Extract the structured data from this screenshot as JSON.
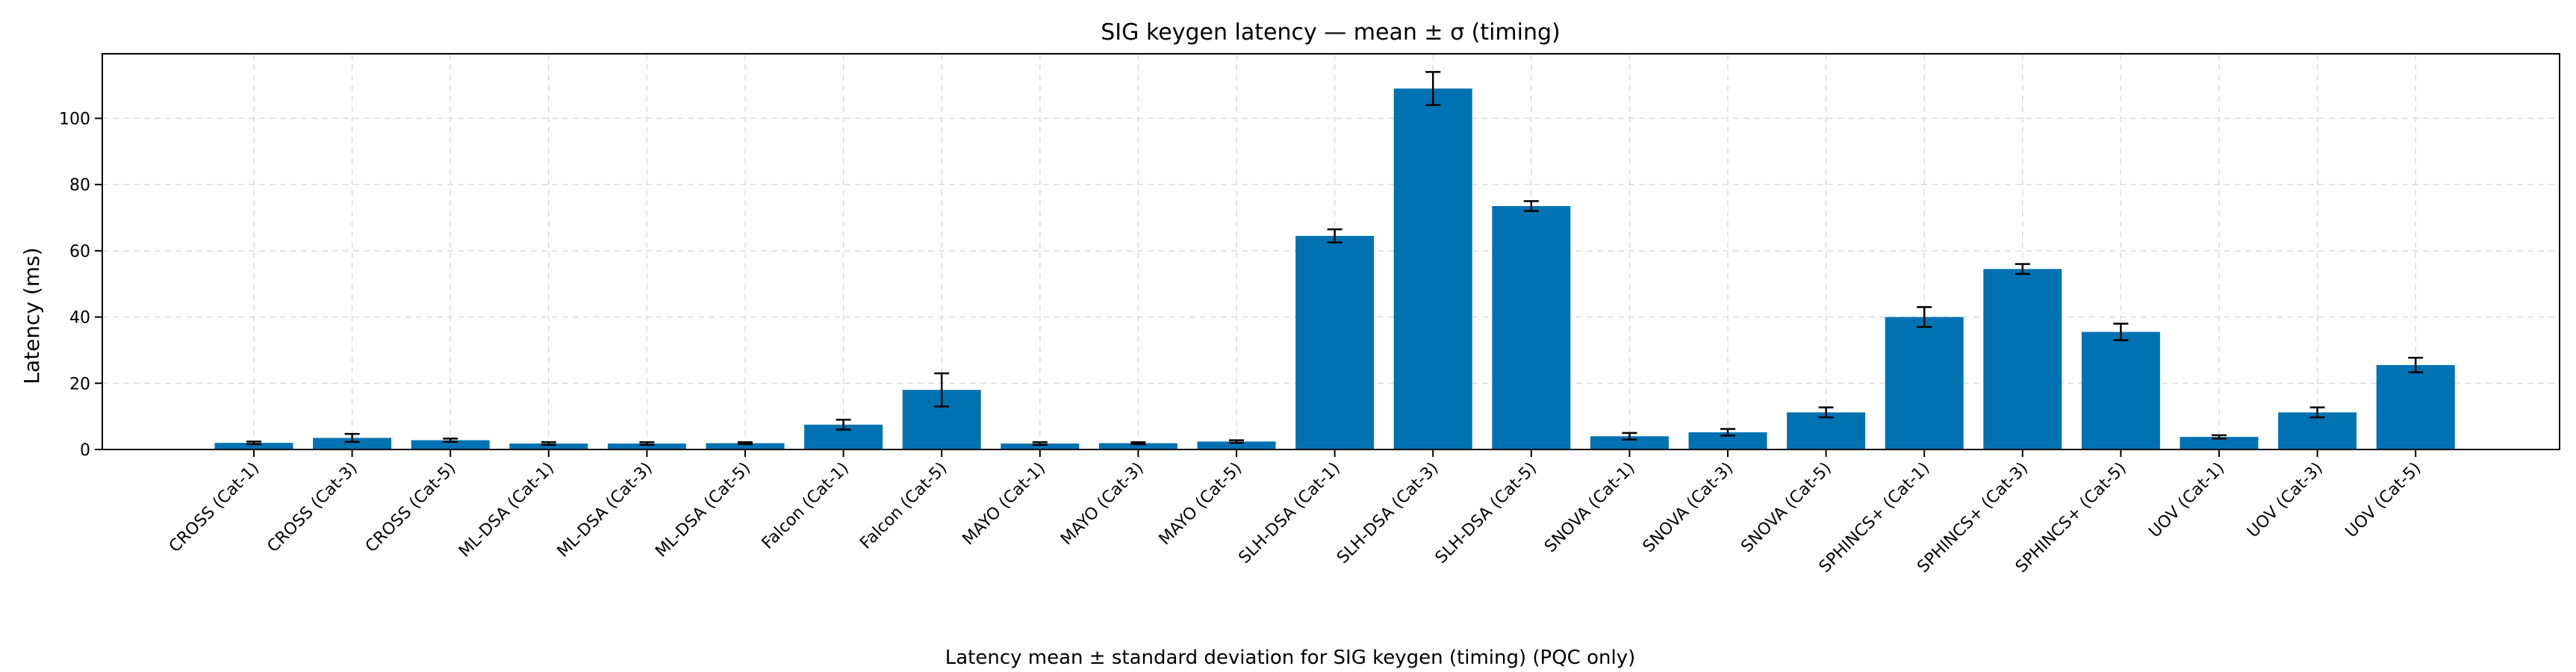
{
  "chart_data": {
    "type": "bar",
    "title": "SIG keygen latency — mean ± σ (timing)",
    "xlabel": "",
    "ylabel": "Latency (ms)",
    "caption": "Latency mean ± standard deviation for SIG keygen (timing) (PQC only)",
    "ylim": [
      0,
      119.5
    ],
    "yticks": [
      0,
      20,
      40,
      60,
      80,
      100
    ],
    "grid": true,
    "categories": [
      "CROSS (Cat-1)",
      "CROSS (Cat-3)",
      "CROSS (Cat-5)",
      "ML-DSA (Cat-1)",
      "ML-DSA (Cat-3)",
      "ML-DSA (Cat-5)",
      "Falcon (Cat-1)",
      "Falcon (Cat-5)",
      "MAYO (Cat-1)",
      "MAYO (Cat-3)",
      "MAYO (Cat-5)",
      "SLH-DSA (Cat-1)",
      "SLH-DSA (Cat-3)",
      "SLH-DSA (Cat-5)",
      "SNOVA (Cat-1)",
      "SNOVA (Cat-3)",
      "SNOVA (Cat-5)",
      "SPHINCS+ (Cat-1)",
      "SPHINCS+ (Cat-3)",
      "SPHINCS+ (Cat-5)",
      "UOV (Cat-1)",
      "UOV (Cat-3)",
      "UOV (Cat-5)"
    ],
    "values": [
      2.0,
      3.5,
      2.8,
      1.8,
      1.8,
      1.9,
      7.5,
      18.0,
      1.8,
      1.9,
      2.4,
      64.5,
      109.0,
      73.5,
      4.0,
      5.2,
      11.2,
      40.0,
      54.5,
      35.5,
      3.8,
      11.2,
      25.5
    ],
    "errors": [
      0.4,
      1.2,
      0.5,
      0.4,
      0.4,
      0.3,
      1.5,
      5.0,
      0.4,
      0.3,
      0.4,
      2.0,
      5.0,
      1.5,
      1.0,
      1.0,
      1.5,
      3.0,
      1.5,
      2.5,
      0.5,
      1.5,
      2.2
    ],
    "bar_color": "#0072b2",
    "error_color": "#000000",
    "grid_color": "#dddddd"
  }
}
